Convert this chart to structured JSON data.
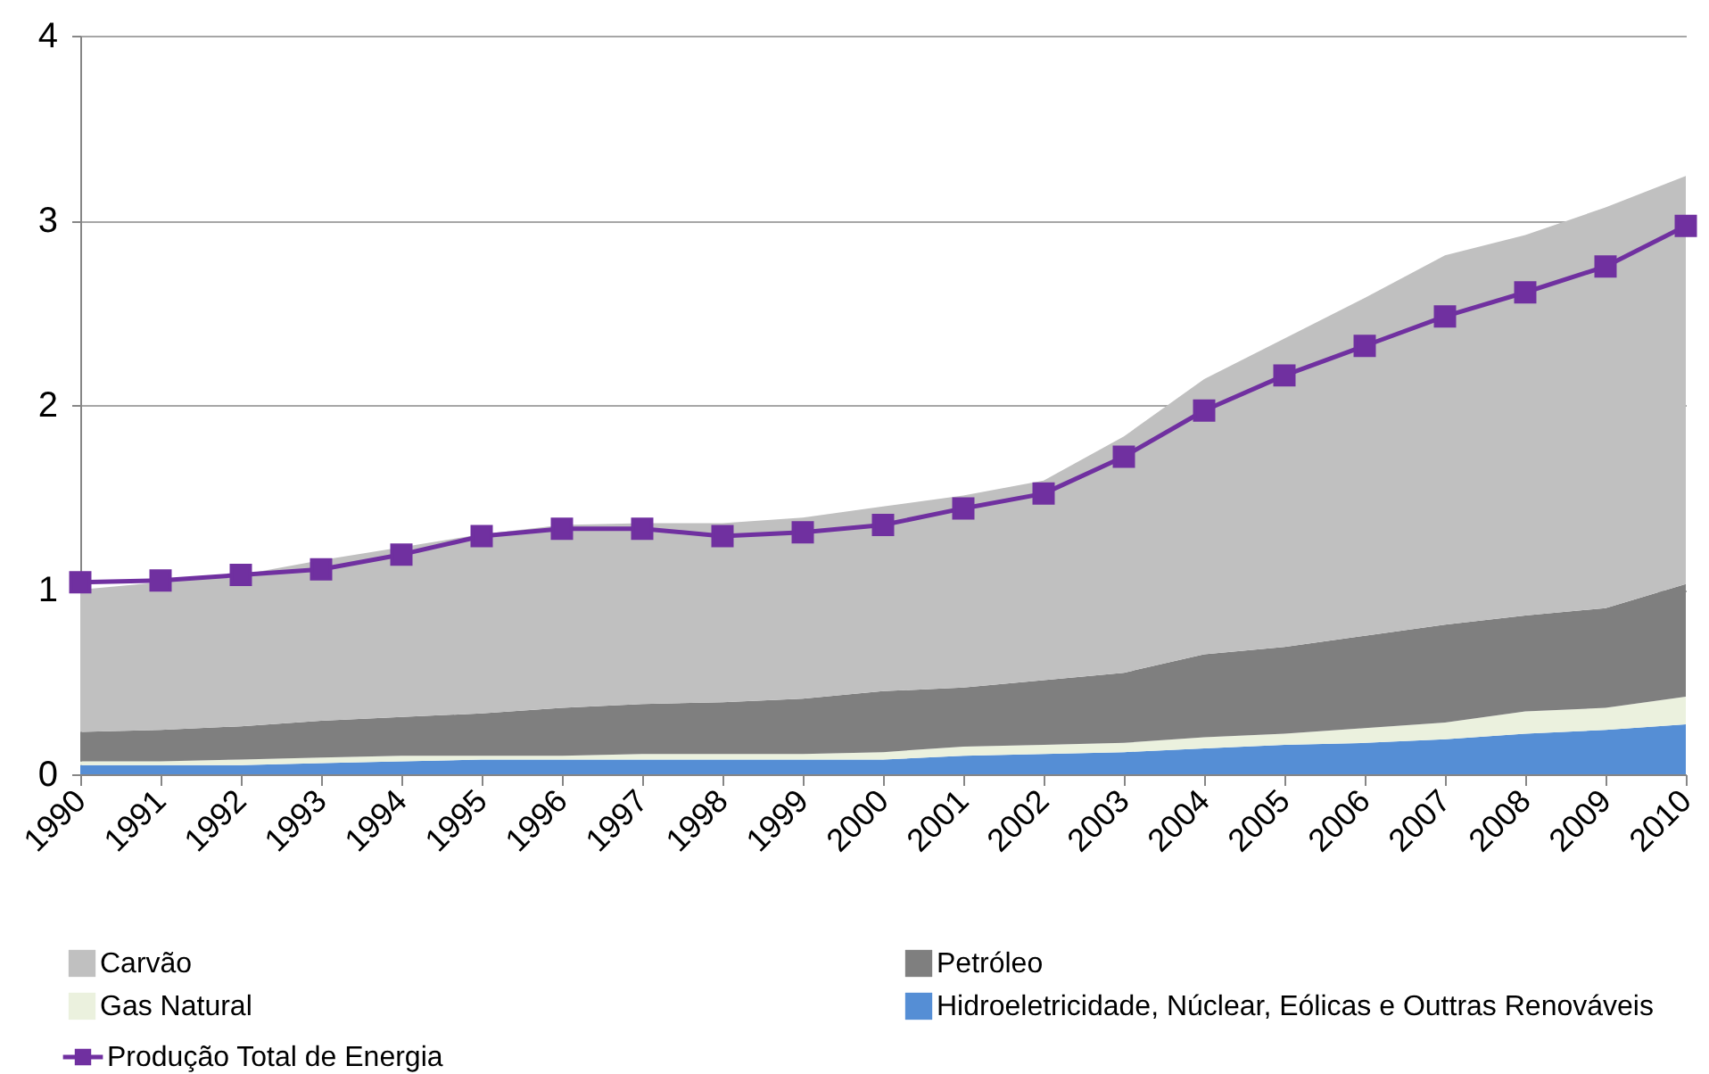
{
  "chart_data": {
    "type": "area",
    "stacked": true,
    "grid": "y",
    "legend": "bottom",
    "categories": [
      "1990",
      "1991",
      "1992",
      "1993",
      "1994",
      "1995",
      "1996",
      "1997",
      "1998",
      "1999",
      "2000",
      "2001",
      "2002",
      "2003",
      "2004",
      "2005",
      "2006",
      "2007",
      "2008",
      "2009",
      "2010"
    ],
    "ylim": [
      0,
      4
    ],
    "yticks": [
      0,
      1,
      2,
      3,
      4
    ],
    "series": [
      {
        "name": "Hidroeletricidade, Núclear, Eólicas e Outtras Renováveis",
        "color": "#558ed5",
        "values": [
          0.05,
          0.05,
          0.05,
          0.06,
          0.07,
          0.08,
          0.08,
          0.08,
          0.08,
          0.08,
          0.08,
          0.1,
          0.11,
          0.12,
          0.14,
          0.16,
          0.17,
          0.19,
          0.22,
          0.24,
          0.27
        ]
      },
      {
        "name": "Gas Natural",
        "color": "#ebf1de",
        "values": [
          0.02,
          0.02,
          0.03,
          0.03,
          0.03,
          0.02,
          0.02,
          0.03,
          0.03,
          0.03,
          0.04,
          0.05,
          0.05,
          0.05,
          0.06,
          0.06,
          0.08,
          0.09,
          0.12,
          0.12,
          0.15
        ]
      },
      {
        "name": "Petróleo",
        "color": "#7f7f7f",
        "values": [
          0.16,
          0.17,
          0.18,
          0.2,
          0.21,
          0.23,
          0.26,
          0.27,
          0.28,
          0.3,
          0.33,
          0.32,
          0.35,
          0.38,
          0.45,
          0.47,
          0.5,
          0.53,
          0.52,
          0.54,
          0.61
        ]
      },
      {
        "name": "Carvão",
        "color": "#c0c0c0",
        "values": [
          0.77,
          0.8,
          0.82,
          0.87,
          0.92,
          0.97,
          0.99,
          0.98,
          0.97,
          0.98,
          1.0,
          1.04,
          1.08,
          1.28,
          1.49,
          1.67,
          1.83,
          2.0,
          2.06,
          2.17,
          2.21
        ]
      },
      {
        "name": "Produção Total de Energia",
        "type": "line",
        "marker": "square",
        "color": "#7030a0",
        "values": [
          1.04,
          1.05,
          1.08,
          1.11,
          1.19,
          1.29,
          1.33,
          1.33,
          1.29,
          1.31,
          1.35,
          1.44,
          1.52,
          1.72,
          1.97,
          2.16,
          2.32,
          2.48,
          2.61,
          2.75,
          2.97
        ]
      }
    ]
  }
}
